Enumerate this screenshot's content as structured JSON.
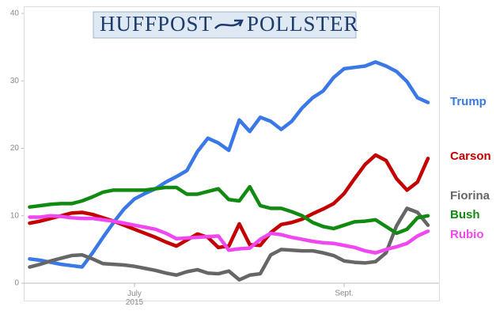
{
  "logo": {
    "left": "HUFFPOST",
    "right": "POLLSTER"
  },
  "chart_data": {
    "type": "line",
    "categories": [
      null,
      null,
      null,
      null,
      null,
      null,
      null,
      null,
      null,
      null,
      "July 2015",
      null,
      null,
      null,
      null,
      null,
      null,
      null,
      null,
      null,
      null,
      null,
      null,
      null,
      null,
      null,
      null,
      null,
      null,
      null,
      "Sept.",
      null,
      null,
      null,
      null,
      null,
      null,
      null,
      null
    ],
    "ylim": [
      0,
      40
    ],
    "yticks": [
      0,
      10,
      20,
      30,
      40
    ],
    "series": [
      {
        "name": "Trump",
        "color": "#3b78e7",
        "values": [
          3.6,
          3.4,
          3.1,
          2.8,
          2.6,
          2.4,
          4.5,
          6.8,
          9,
          11,
          12.5,
          13.3,
          14,
          15,
          15.8,
          16.7,
          19.5,
          21.5,
          20.8,
          19.7,
          24.2,
          22.5,
          24.6,
          24,
          22.8,
          24,
          26,
          27.5,
          28.5,
          30.5,
          31.8,
          32,
          32.2,
          32.8,
          32.2,
          31.4,
          29.9,
          27.5,
          26.8
        ]
      },
      {
        "name": "Carson",
        "color": "#c40000",
        "values": [
          8.9,
          9.2,
          9.6,
          10,
          10.4,
          10.5,
          10.2,
          9.7,
          9.2,
          8.6,
          8,
          7.4,
          6.8,
          6.1,
          5.5,
          6.4,
          7.3,
          6.8,
          5.3,
          5.5,
          8.8,
          5.7,
          5.6,
          7.5,
          8.7,
          9,
          9.5,
          10.3,
          11,
          11.8,
          13.3,
          15.5,
          17.6,
          19,
          18.2,
          15.5,
          13.8,
          15,
          18.5
        ]
      },
      {
        "name": "Fiorina",
        "color": "#666666",
        "values": [
          2.4,
          2.8,
          3.3,
          3.7,
          4.1,
          4.2,
          3.6,
          2.9,
          2.8,
          2.7,
          2.5,
          2.2,
          1.9,
          1.5,
          1.2,
          1.7,
          2,
          1.5,
          1.4,
          1.8,
          0.5,
          1.2,
          1.4,
          4.2,
          5,
          4.9,
          4.8,
          4.8,
          4.5,
          4.1,
          3.3,
          3.1,
          3,
          3.2,
          4.5,
          8.5,
          11.1,
          10.5,
          8.6
        ]
      },
      {
        "name": "Bush",
        "color": "#108a10",
        "values": [
          11.3,
          11.5,
          11.7,
          11.8,
          11.8,
          12.2,
          12.8,
          13.5,
          13.8,
          13.8,
          13.8,
          13.8,
          14,
          14.2,
          14.2,
          13.2,
          13.2,
          13.6,
          14,
          12.4,
          12.2,
          14.3,
          11.5,
          11.1,
          11.1,
          10.6,
          10,
          9,
          8.4,
          8.1,
          8.6,
          9.1,
          9.2,
          9.4,
          8.4,
          7.4,
          8,
          9.7,
          10
        ]
      },
      {
        "name": "Rubio",
        "color": "#f048f0",
        "values": [
          9.8,
          9.8,
          10,
          9.9,
          9.7,
          9.6,
          9.6,
          9.4,
          9.2,
          8.9,
          8.6,
          8.3,
          8,
          7.4,
          6.6,
          6.7,
          6.8,
          6.9,
          7,
          4.9,
          5.1,
          5.2,
          6.5,
          7.4,
          7.2,
          6.8,
          6.5,
          6.2,
          6,
          5.9,
          5.6,
          5.3,
          4.8,
          4.5,
          5,
          5.4,
          5.9,
          7,
          7.7
        ]
      }
    ]
  }
}
